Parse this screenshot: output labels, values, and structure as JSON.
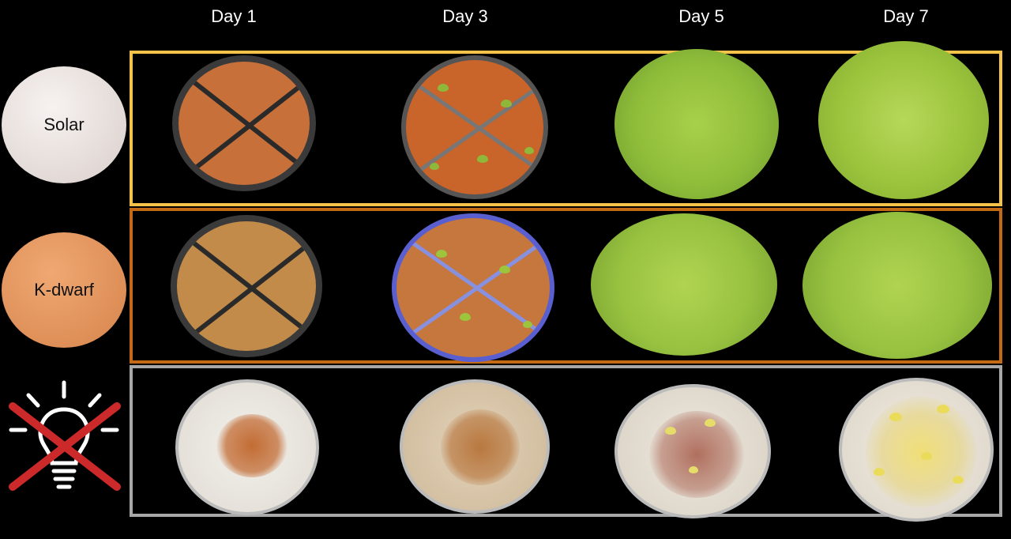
{
  "days": [
    "Day 1",
    "Day 3",
    "Day 5",
    "Day 7"
  ],
  "conditions": [
    {
      "label": "Solar",
      "circle_color": "#e9e2df",
      "frame_color": "#f5c24a"
    },
    {
      "label": "K-dwarf",
      "circle_color": "#e5965e",
      "frame_color": "#c56a14"
    },
    {
      "label": "",
      "icon": "lightbulb-crossed-out-icon",
      "frame_color": "#a8a8a8"
    }
  ],
  "colors": {
    "background": "#000000",
    "seed": "#c0652a",
    "seedling_green": "#9cc43c",
    "seedling_pale": "#e6dc6a",
    "cotton": "#e8e2d8",
    "cross": "#cc2a2a"
  }
}
